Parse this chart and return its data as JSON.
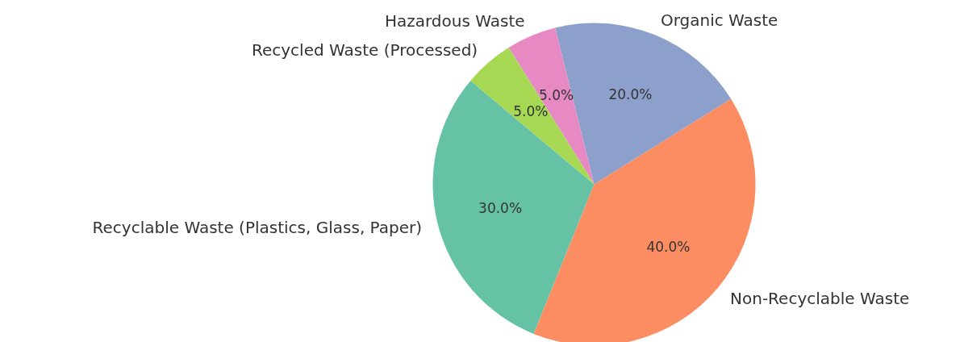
{
  "chart_data": {
    "type": "pie",
    "categories": [
      "Recyclable Waste (Plastics, Glass, Paper)",
      "Non-Recyclable Waste",
      "Organic Waste",
      "Hazardous Waste",
      "Recycled Waste (Processed)"
    ],
    "values": [
      30,
      40,
      20,
      5,
      5
    ],
    "colors": [
      "#66c2a5",
      "#fc8d62",
      "#8da0cb",
      "#e78ac3",
      "#a6d854"
    ],
    "value_labels": [
      "30.0%",
      "40.0%",
      "20.0%",
      "5.0%",
      "5.0%"
    ]
  }
}
